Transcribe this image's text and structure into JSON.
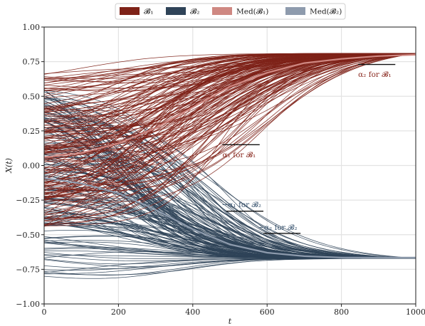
{
  "chart_data": {
    "type": "line",
    "title": "",
    "xlabel": "t",
    "ylabel": "X(t)",
    "xlim": [
      0,
      1000
    ],
    "ylim": [
      -1.0,
      1.0
    ],
    "xticks": [
      0,
      200,
      400,
      600,
      800,
      1000
    ],
    "yticks": [
      -1.0,
      -0.75,
      -0.5,
      -0.25,
      0.0,
      0.25,
      0.5,
      0.75,
      1.0
    ],
    "xtick_labels": [
      "0",
      "200",
      "400",
      "600",
      "800",
      "1000"
    ],
    "ytick_labels": [
      "−1.00",
      "−0.75",
      "−0.50",
      "−0.25",
      "0.00",
      "0.25",
      "0.50",
      "0.75",
      "1.00"
    ],
    "grid": true,
    "legend_position": "top-center",
    "legend": [
      {
        "label": "𝓑₁",
        "color": "#7e2218"
      },
      {
        "label": "𝓑₂",
        "color": "#2f4358"
      },
      {
        "label": "Med(𝓑₁)",
        "color": "#cf8882"
      },
      {
        "label": "Med(𝓑₂)",
        "color": "#8e9bad"
      }
    ],
    "series": [
      {
        "name": "𝓑₁",
        "color": "#7e2218",
        "trajectory_count": 160,
        "start_range": [
          -0.45,
          0.68
        ],
        "end_value": 0.81
      },
      {
        "name": "𝓑₂",
        "color": "#2f4358",
        "trajectory_count": 160,
        "start_range": [
          -0.8,
          0.55
        ],
        "end_value": -0.67
      },
      {
        "name": "Med(𝓑₁)",
        "color": "#cf8882",
        "x": [
          0,
          100,
          200,
          300,
          400,
          500,
          600,
          700,
          800,
          900,
          1000
        ],
        "y": [
          0.06,
          0.09,
          0.16,
          0.27,
          0.42,
          0.57,
          0.67,
          0.74,
          0.77,
          0.79,
          0.8
        ]
      },
      {
        "name": "Med(𝓑₂)",
        "color": "#8e9bad",
        "x": [
          0,
          100,
          200,
          300,
          400,
          500,
          600,
          700,
          800,
          900,
          1000
        ],
        "y": [
          -0.09,
          -0.13,
          -0.2,
          -0.32,
          -0.46,
          -0.57,
          -0.63,
          -0.655,
          -0.665,
          -0.665,
          -0.665
        ]
      }
    ],
    "annotations": [
      {
        "label": "α₁ for 𝓑₁",
        "color": "#8a2a20",
        "y": 0.15,
        "x_range": [
          480,
          580
        ],
        "text_at": [
          480,
          0.08
        ]
      },
      {
        "label": "α₂ for 𝓑₁",
        "color": "#8a2a20",
        "y": 0.73,
        "x_range": [
          845,
          945
        ],
        "text_at": [
          845,
          0.66
        ]
      },
      {
        "label": "−α₁ for 𝓑₂",
        "color": "#3e5873",
        "y": -0.33,
        "x_range": [
          490,
          590
        ],
        "text_at": [
          478,
          -0.28
        ]
      },
      {
        "label": "−α₂ for 𝓑₂",
        "color": "#3e5873",
        "y": -0.49,
        "x_range": [
          590,
          690
        ],
        "text_at": [
          575,
          -0.445
        ]
      }
    ]
  }
}
